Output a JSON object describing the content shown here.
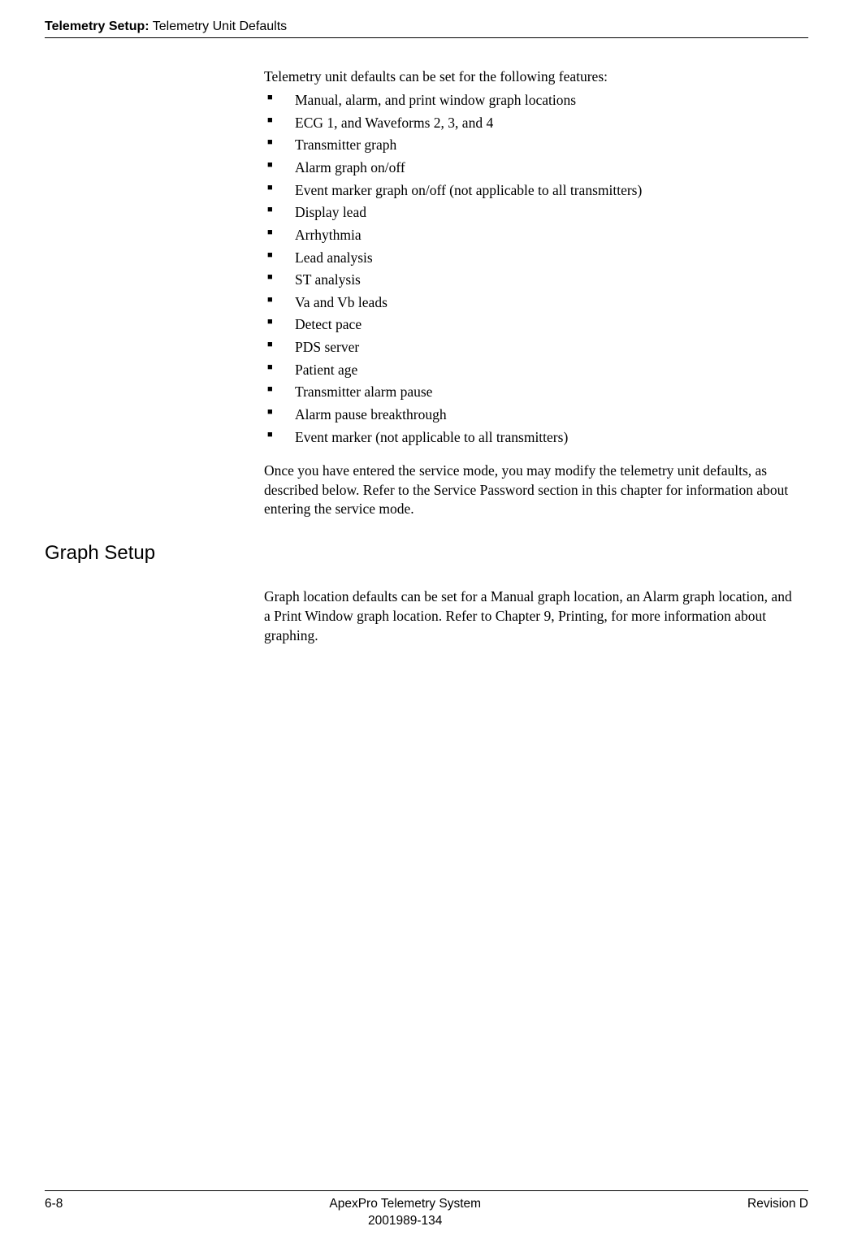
{
  "header": {
    "chapter": "Telemetry Setup:",
    "section": "Telemetry Unit Defaults"
  },
  "intro": "Telemetry unit defaults can be set for the following features:",
  "features": [
    "Manual, alarm, and print window graph locations",
    "ECG 1, and Waveforms 2, 3, and 4",
    "Transmitter graph",
    "Alarm graph on/off",
    "Event marker graph on/off (not applicable to all transmitters)",
    "Display lead",
    "Arrhythmia",
    "Lead analysis",
    "ST analysis",
    "Va and Vb leads",
    "Detect pace",
    "PDS server",
    "Patient age",
    "Transmitter alarm pause",
    "Alarm pause breakthrough",
    "Event marker (not applicable to all transmitters)"
  ],
  "after_list": "Once you have entered the service mode, you may modify the telemetry unit defaults, as described below. Refer to the Service Password section in this chapter for information about entering the service mode.",
  "section_heading": "Graph Setup",
  "graph_para": "Graph location defaults can be set for a Manual graph location, an Alarm graph location, and a Print Window graph location. Refer to Chapter 9, Printing, for more information about graphing.",
  "footer": {
    "page_num": "6-8",
    "title": "ApexPro Telemetry System",
    "doc_num": "2001989-134",
    "revision": "Revision D"
  }
}
